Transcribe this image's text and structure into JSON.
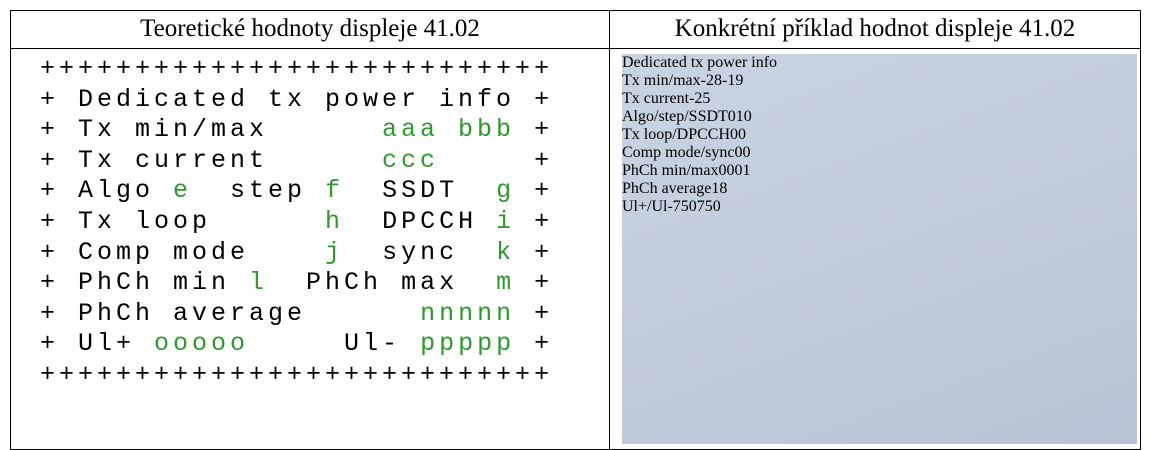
{
  "header": {
    "left": "Teoretické hodnoty displeje 41.02",
    "right": "Konkrétní příklad hodnot displeje 41.02"
  },
  "highlight_color": "#2e9a2e",
  "template": {
    "lines": [
      [
        "+++++++++++++++++++++++++++"
      ],
      [
        "+ Dedicated tx power info +"
      ],
      [
        "+ Tx min/max      ",
        "aaa bbb",
        " +"
      ],
      [
        "+ Tx current      ",
        "ccc",
        "     +"
      ],
      [
        "+ Algo ",
        "e",
        "  step ",
        "f",
        "  SSDT  ",
        "g",
        " +"
      ],
      [
        "+ Tx loop      ",
        "h",
        "  DPCCH ",
        "i",
        " +"
      ],
      [
        "+ Comp mode    ",
        "j",
        "  sync  ",
        "k",
        " +"
      ],
      [
        "+ PhCh min ",
        "l",
        "  PhCh max  ",
        "m",
        " +"
      ],
      [
        "+ PhCh average      ",
        "nnnnn",
        " +"
      ],
      [
        "+ Ul+ ",
        "ooooo",
        "     Ul- ",
        "ppppp",
        " +"
      ],
      [
        "+++++++++++++++++++++++++++"
      ]
    ]
  },
  "example": {
    "rows": [
      [
        "Dedicated tx power info"
      ],
      [
        "Tx min/max",
        "-28",
        "-19"
      ],
      [
        "Tx current",
        "-25"
      ],
      [
        "Algo/step/SSDT",
        "0",
        "1",
        "0"
      ],
      [
        "Tx loop/DPCCH",
        "0",
        "0"
      ],
      [
        "Comp mode/sync",
        "0",
        "0"
      ],
      [
        "PhCh min/max",
        "00",
        "01"
      ],
      [
        "PhCh average",
        "18"
      ],
      [
        "Ul+/Ul-",
        "750",
        "750"
      ]
    ]
  }
}
